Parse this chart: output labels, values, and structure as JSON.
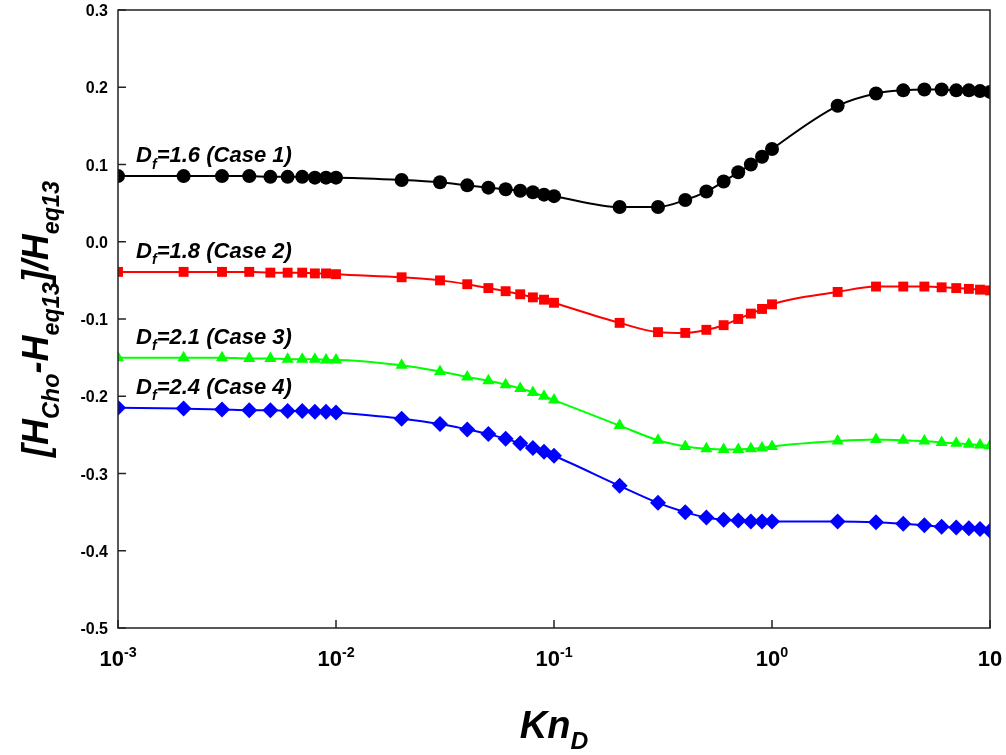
{
  "chart_data": {
    "type": "line",
    "xlabel": "Kn$_{D}$",
    "ylabel": "[H$_{Cho}$-H$_{eq13}$]/H$_{eq13}$",
    "x": [
      0.001,
      0.002,
      0.003,
      0.004,
      0.005,
      0.006,
      0.007,
      0.008,
      0.009,
      0.01,
      0.02,
      0.03,
      0.04,
      0.05,
      0.06,
      0.07,
      0.08,
      0.09,
      0.1,
      0.2,
      0.3,
      0.4,
      0.5,
      0.6,
      0.7,
      0.8,
      0.9,
      1,
      2,
      3,
      4,
      5,
      6,
      7,
      8,
      9,
      10
    ],
    "series": [
      {
        "name": "D$_{f}$=1.6 (Case 1)",
        "color": "#000000",
        "marker": "circle",
        "values": [
          0.085,
          0.085,
          0.085,
          0.085,
          0.084,
          0.084,
          0.084,
          0.083,
          0.083,
          0.083,
          0.08,
          0.077,
          0.073,
          0.07,
          0.068,
          0.066,
          0.064,
          0.061,
          0.059,
          0.045,
          0.045,
          0.054,
          0.065,
          0.078,
          0.09,
          0.1,
          0.11,
          0.12,
          0.176,
          0.192,
          0.196,
          0.197,
          0.197,
          0.196,
          0.196,
          0.195,
          0.194
        ]
      },
      {
        "name": "D$_{f}$=1.8 (Case 2)",
        "color": "#ff0000",
        "marker": "square",
        "values": [
          -0.039,
          -0.039,
          -0.039,
          -0.039,
          -0.04,
          -0.04,
          -0.04,
          -0.041,
          -0.041,
          -0.042,
          -0.046,
          -0.05,
          -0.055,
          -0.06,
          -0.064,
          -0.068,
          -0.072,
          -0.075,
          -0.079,
          -0.105,
          -0.117,
          -0.118,
          -0.114,
          -0.108,
          -0.1,
          -0.093,
          -0.087,
          -0.081,
          -0.065,
          -0.058,
          -0.058,
          -0.058,
          -0.059,
          -0.06,
          -0.061,
          -0.062,
          -0.063
        ]
      },
      {
        "name": "D$_{f}$=2.1 (Case 3)",
        "color": "#00ff00",
        "marker": "triangle",
        "values": [
          -0.15,
          -0.15,
          -0.15,
          -0.151,
          -0.151,
          -0.152,
          -0.152,
          -0.152,
          -0.153,
          -0.153,
          -0.16,
          -0.168,
          -0.175,
          -0.18,
          -0.185,
          -0.19,
          -0.195,
          -0.2,
          -0.205,
          -0.238,
          -0.257,
          -0.265,
          -0.268,
          -0.269,
          -0.269,
          -0.268,
          -0.267,
          -0.265,
          -0.258,
          -0.256,
          -0.257,
          -0.258,
          -0.26,
          -0.261,
          -0.262,
          -0.263,
          -0.264
        ]
      },
      {
        "name": "D$_{f}$=2.4 (Case 4)",
        "color": "#0000ff",
        "marker": "diamond",
        "values": [
          -0.215,
          -0.216,
          -0.217,
          -0.218,
          -0.218,
          -0.219,
          -0.219,
          -0.22,
          -0.22,
          -0.221,
          -0.229,
          -0.236,
          -0.243,
          -0.249,
          -0.255,
          -0.261,
          -0.267,
          -0.272,
          -0.277,
          -0.316,
          -0.338,
          -0.35,
          -0.357,
          -0.36,
          -0.361,
          -0.362,
          -0.362,
          -0.362,
          -0.362,
          -0.363,
          -0.365,
          -0.367,
          -0.369,
          -0.37,
          -0.371,
          -0.372,
          -0.374
        ]
      }
    ],
    "log": "x",
    "xlim": [
      0.001,
      10
    ],
    "xticks": [
      {
        "value": 0.001,
        "label": "10$^{-3}$"
      },
      {
        "value": 0.01,
        "label": "10$^{-2}$"
      },
      {
        "value": 0.1,
        "label": "10$^{-1}$"
      },
      {
        "value": 1,
        "label": "10$^{0}$"
      },
      10
    ],
    "ylim": [
      -0.5,
      0.3
    ],
    "yticks": [
      {
        "value": -0.5,
        "label": "-0.5"
      },
      {
        "value": -0.4,
        "label": "-0.4"
      },
      {
        "value": -0.3,
        "label": "-0.3"
      },
      {
        "value": -0.2,
        "label": "-0.2"
      },
      {
        "value": -0.1,
        "label": "-0.1"
      },
      {
        "value": 0,
        "label": "0.0"
      },
      {
        "value": 0.1,
        "label": "0.1"
      },
      {
        "value": 0.2,
        "label": "0.2"
      },
      {
        "value": 0.3,
        "label": "0.3"
      }
    ],
    "grid": false,
    "legend": false,
    "line_style": "solid"
  }
}
